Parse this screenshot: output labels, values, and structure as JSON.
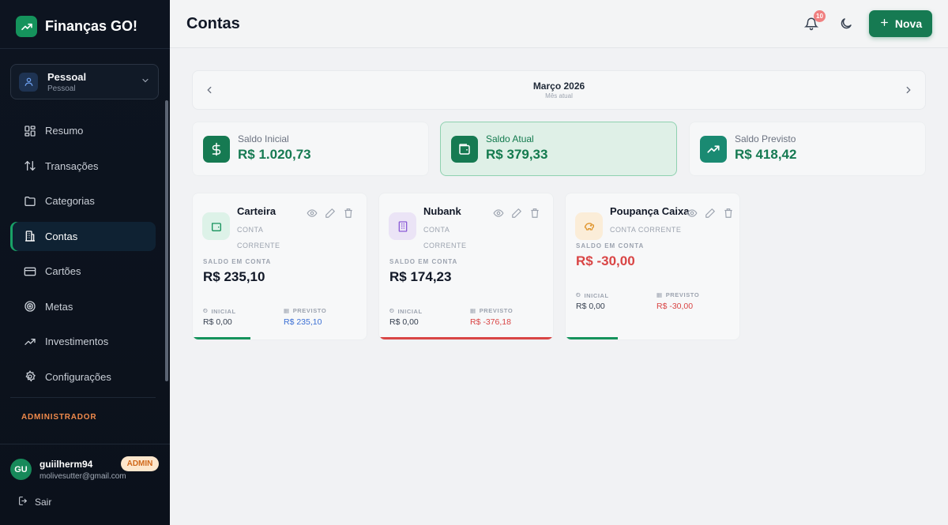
{
  "brand": {
    "name": "Finanças GO!"
  },
  "profile": {
    "name": "Pessoal",
    "subtitle": "Pessoal"
  },
  "nav": [
    {
      "label": "Resumo",
      "icon": "grid-icon",
      "active": false
    },
    {
      "label": "Transações",
      "icon": "arrows-updown-icon",
      "active": false
    },
    {
      "label": "Categorias",
      "icon": "folder-icon",
      "active": false
    },
    {
      "label": "Contas",
      "icon": "bank-icon",
      "active": true
    },
    {
      "label": "Cartões",
      "icon": "credit-card-icon",
      "active": false
    },
    {
      "label": "Metas",
      "icon": "target-icon",
      "active": false
    },
    {
      "label": "Investimentos",
      "icon": "trending-up-icon",
      "active": false
    },
    {
      "label": "Configurações",
      "icon": "gear-icon",
      "active": false
    }
  ],
  "admin_section": {
    "label": "ADMINISTRADOR"
  },
  "user": {
    "initials": "GU",
    "name": "guiilherm94",
    "email": "molivesutter@gmail.com",
    "badge": "ADMIN"
  },
  "logout": {
    "label": "Sair"
  },
  "header": {
    "title": "Contas",
    "notifications_count": "10",
    "new_button_label": "Nova"
  },
  "month": {
    "title": "Março 2026",
    "subtitle": "Mês atual"
  },
  "stats": [
    {
      "label": "Saldo Inicial",
      "value": "R$ 1.020,73",
      "icon": "dollar-icon"
    },
    {
      "label": "Saldo Atual",
      "value": "R$ 379,33",
      "icon": "wallet-icon"
    },
    {
      "label": "Saldo Previsto",
      "value": "R$ 418,42",
      "icon": "trending-up-icon"
    }
  ],
  "accounts": [
    {
      "name": "Carteira",
      "type": "CONTA CORRENTE",
      "balance_label": "SALDO EM CONTA",
      "balance": "R$ 235,10",
      "initial_label": "INICIAL",
      "initial": "R$ 0,00",
      "forecast_label": "PREVISTO",
      "forecast": "R$ 235,10",
      "icon": "wallet-icon",
      "progress": 0.33,
      "bar_color": "#15935c"
    },
    {
      "name": "Nubank",
      "type": "CONTA CORRENTE",
      "balance_label": "SALDO EM CONTA",
      "balance": "R$ 174,23",
      "initial_label": "INICIAL",
      "initial": "R$ 0,00",
      "forecast_label": "PREVISTO",
      "forecast": "R$ -376,18",
      "icon": "building-icon",
      "progress": 1.0,
      "bar_color": "#d94545"
    },
    {
      "name": "Poupança Caixa",
      "type": "CONTA CORRENTE",
      "balance_label": "SALDO EM CONTA",
      "balance": "R$ -30,00",
      "initial_label": "INICIAL",
      "initial": "R$ 0,00",
      "forecast_label": "PREVISTO",
      "forecast": "R$ -30,00",
      "icon": "piggy-bank-icon",
      "progress": 0.3,
      "bar_color": "#15935c"
    }
  ],
  "colors": {
    "primary": "#167a52",
    "negative": "#d94545",
    "forecast_positive": "#3b6fd4",
    "sidebar_bg": "#0d1420"
  }
}
